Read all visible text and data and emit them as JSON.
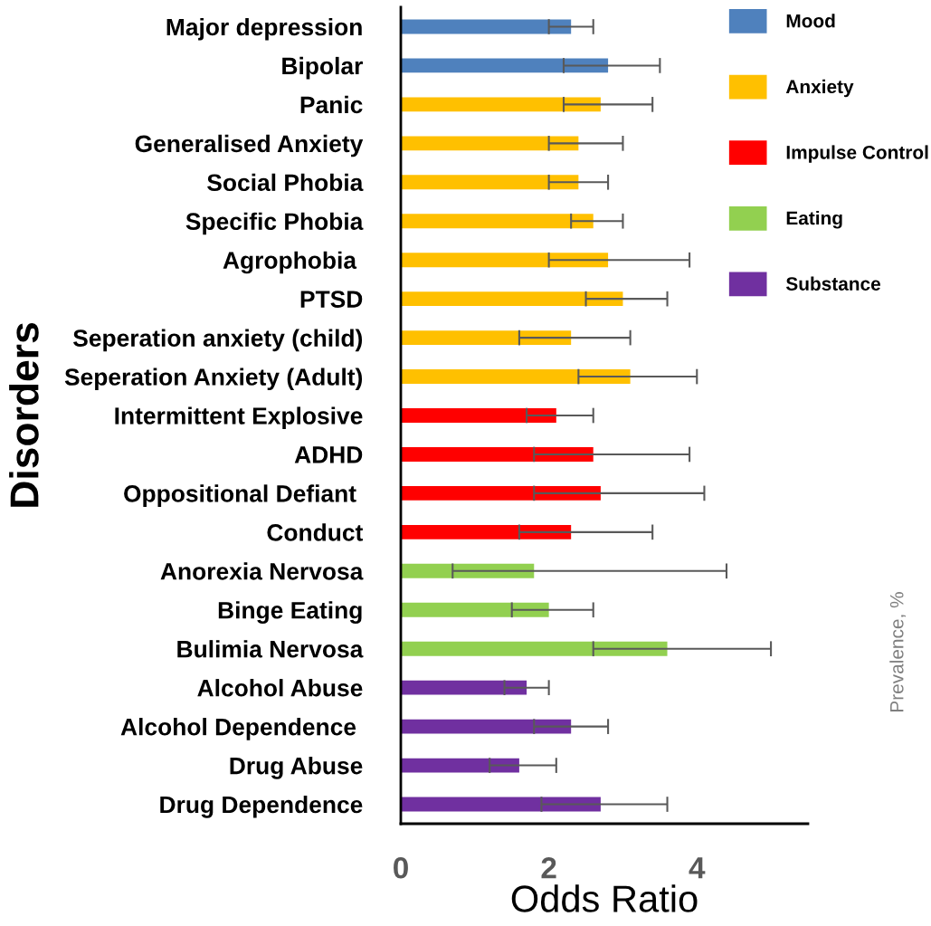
{
  "chart_data": {
    "type": "bar",
    "orientation": "horizontal",
    "xlabel": "Odds Ratio",
    "ylabel": "Disorders",
    "categories": [
      "Major depression",
      "Bipolar",
      "Panic",
      "Generalised Anxiety",
      "Social Phobia",
      "Specific Phobia",
      "Agrophobia ",
      "PTSD",
      "Seperation anxiety (child)",
      "Seperation Anxiety (Adult)",
      "Intermittent Explosive",
      "ADHD",
      "Oppositional Defiant ",
      "Conduct",
      "Anorexia Nervosa",
      "Binge Eating",
      "Bulimia Nervosa",
      "Alcohol Abuse",
      "Alcohol Dependence ",
      "Drug Abuse",
      "Drug Dependence"
    ],
    "series": [
      {
        "name": "Mood",
        "color": "#4f81bd",
        "values": [
          2.3,
          2.8,
          null,
          null,
          null,
          null,
          null,
          null,
          null,
          null,
          null,
          null,
          null,
          null,
          null,
          null,
          null,
          null,
          null,
          null,
          null
        ],
        "errors": [
          [
            2.0,
            2.6
          ],
          [
            2.2,
            3.5
          ],
          null,
          null,
          null,
          null,
          null,
          null,
          null,
          null,
          null,
          null,
          null,
          null,
          null,
          null,
          null,
          null,
          null,
          null,
          null
        ]
      },
      {
        "name": "Anxiety",
        "color": "#ffc000",
        "values": [
          null,
          null,
          2.7,
          2.4,
          2.4,
          2.6,
          2.8,
          3.0,
          2.3,
          3.1,
          null,
          null,
          null,
          null,
          null,
          null,
          null,
          null,
          null,
          null,
          null
        ],
        "errors": [
          null,
          null,
          [
            2.2,
            3.4
          ],
          [
            2.0,
            3.0
          ],
          [
            2.0,
            2.8
          ],
          [
            2.3,
            3.0
          ],
          [
            2.0,
            3.9
          ],
          [
            2.5,
            3.6
          ],
          [
            1.6,
            3.1
          ],
          [
            2.4,
            4.0
          ],
          null,
          null,
          null,
          null,
          null,
          null,
          null,
          null,
          null,
          null,
          null
        ]
      },
      {
        "name": "Impulse Control",
        "color": "#ff0000",
        "values": [
          null,
          null,
          null,
          null,
          null,
          null,
          null,
          null,
          null,
          null,
          2.1,
          2.6,
          2.7,
          2.3,
          null,
          null,
          null,
          null,
          null,
          null,
          null
        ],
        "errors": [
          null,
          null,
          null,
          null,
          null,
          null,
          null,
          null,
          null,
          null,
          [
            1.7,
            2.6
          ],
          [
            1.8,
            3.9
          ],
          [
            1.8,
            4.1
          ],
          [
            1.6,
            3.4
          ],
          null,
          null,
          null,
          null,
          null,
          null,
          null
        ]
      },
      {
        "name": "Eating",
        "color": "#92d050",
        "values": [
          null,
          null,
          null,
          null,
          null,
          null,
          null,
          null,
          null,
          null,
          null,
          null,
          null,
          null,
          1.8,
          2.0,
          3.6,
          null,
          null,
          null,
          null
        ],
        "errors": [
          null,
          null,
          null,
          null,
          null,
          null,
          null,
          null,
          null,
          null,
          null,
          null,
          null,
          null,
          [
            0.7,
            4.4
          ],
          [
            1.5,
            2.6
          ],
          [
            2.6,
            5.0
          ],
          null,
          null,
          null,
          null
        ]
      },
      {
        "name": "Substance",
        "color": "#7030a0",
        "values": [
          null,
          null,
          null,
          null,
          null,
          null,
          null,
          null,
          null,
          null,
          null,
          null,
          null,
          null,
          null,
          null,
          null,
          1.7,
          2.3,
          1.6,
          2.7
        ],
        "errors": [
          null,
          null,
          null,
          null,
          null,
          null,
          null,
          null,
          null,
          null,
          null,
          null,
          null,
          null,
          null,
          null,
          null,
          [
            1.4,
            2.0
          ],
          [
            1.8,
            2.8
          ],
          [
            1.2,
            2.1
          ],
          [
            1.9,
            3.6
          ]
        ]
      }
    ],
    "xlim": [
      0,
      5.5
    ],
    "xticks": [
      0,
      2,
      4
    ],
    "grid": false,
    "legend": "top right",
    "annotations": [
      "Prevalence, %"
    ]
  }
}
